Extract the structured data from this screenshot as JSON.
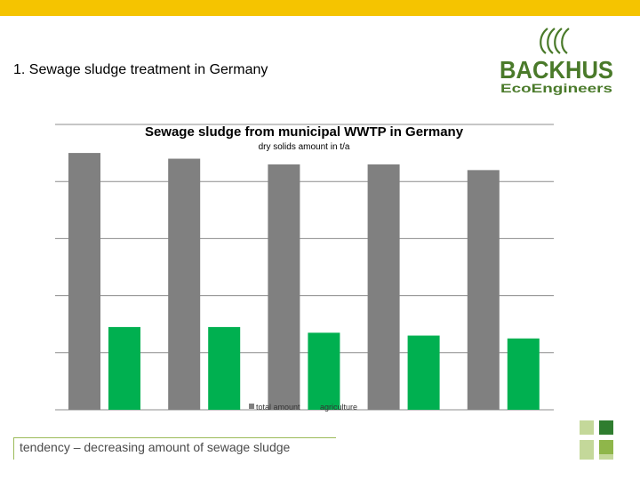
{
  "slide": {
    "title": "1. Sewage sludge treatment in Germany",
    "caption": "tendency – decreasing amount of sewage sludge",
    "accent_color": "#f5c400"
  },
  "logo": {
    "brand": "BACKHUS",
    "tagline": "EcoEngineers",
    "color": "#4a7a2a"
  },
  "chart_data": {
    "type": "bar",
    "title": "Sewage sludge from municipal WWTP in Germany",
    "subtitle": "dry solids amount in t/a",
    "xlabel": "",
    "ylabel": "",
    "categories": [
      "",
      "",
      "",
      "",
      ""
    ],
    "ylim": [
      0,
      5
    ],
    "grid": true,
    "legend_position": "bottom-center",
    "series": [
      {
        "name": "total amount",
        "color": "#808080",
        "values": [
          4.5,
          4.4,
          4.3,
          4.3,
          4.2
        ]
      },
      {
        "name": "agriculture",
        "color": "#00b050",
        "values": [
          1.45,
          1.45,
          1.35,
          1.3,
          1.25
        ]
      }
    ]
  },
  "deco": {
    "colors": [
      "#c4d89a",
      "#8fb64a",
      "#2f7d2f"
    ]
  }
}
